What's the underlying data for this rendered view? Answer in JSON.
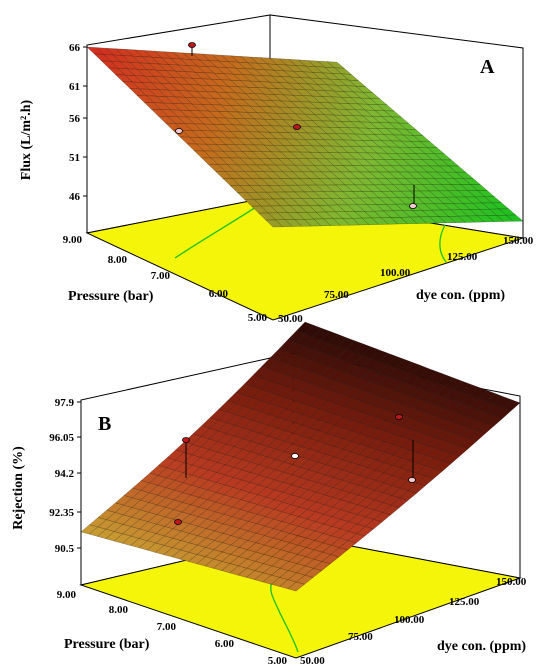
{
  "chart_data": [
    {
      "type": "surface3d",
      "panel_label": "A",
      "zlabel": "Flux (L/m².h)",
      "xlabel": "dye con. (ppm)",
      "ylabel": "Pressure (bar)",
      "z_ticks": [
        "66",
        "61",
        "56",
        "51",
        "46"
      ],
      "x_ticks": [
        "50.00",
        "75.00",
        "100.00",
        "125.00",
        "150.00"
      ],
      "y_ticks": [
        "9.00",
        "8.00",
        "7.00",
        "6.00",
        "5.00"
      ],
      "zlim": [
        44,
        66
      ],
      "xlim": [
        50,
        150
      ],
      "ylim": [
        5,
        9
      ],
      "surface_corners": {
        "dye50_p9": 66.0,
        "dye150_p9": 54.5,
        "dye50_p5": 55.0,
        "dye150_p5": 46.0
      },
      "floor_color": "#f5f50a",
      "colors": [
        "#d42a1f",
        "#c56a1c",
        "#7fb830",
        "#18c21e"
      ]
    },
    {
      "type": "surface3d",
      "panel_label": "B",
      "zlabel": "Rejection (%)",
      "xlabel": "dye con. (ppm)",
      "ylabel": "Pressure (bar)",
      "z_ticks": [
        "97.9",
        "96.05",
        "94.2",
        "92.35",
        "90.5"
      ],
      "x_ticks": [
        "50.00",
        "75.00",
        "100.00",
        "125.00",
        "150.00"
      ],
      "y_ticks": [
        "9.00",
        "8.00",
        "7.00",
        "6.00",
        "5.00"
      ],
      "zlim": [
        90.5,
        97.9
      ],
      "xlim": [
        50,
        150
      ],
      "ylim": [
        5,
        9
      ],
      "surface_corners": {
        "dye50_p9": 91.3,
        "dye150_p9": 97.9,
        "dye50_p5": 92.0,
        "dye150_p5": 97.5
      },
      "floor_color": "#f5f50a",
      "colors": [
        "#2a0a06",
        "#7a1d0d",
        "#b93a20",
        "#c8a032"
      ]
    }
  ]
}
